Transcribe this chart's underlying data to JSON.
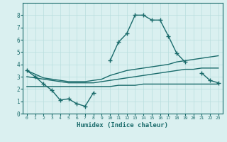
{
  "xlabel": "Humidex (Indice chaleur)",
  "x_values": [
    0,
    1,
    2,
    3,
    4,
    5,
    6,
    7,
    8,
    9,
    10,
    11,
    12,
    13,
    14,
    15,
    16,
    17,
    18,
    19,
    20,
    21,
    22,
    23
  ],
  "line1_y": [
    3.5,
    3.0,
    2.4,
    1.9,
    1.1,
    1.2,
    0.8,
    0.6,
    1.7,
    null,
    4.3,
    5.8,
    6.5,
    8.0,
    8.0,
    7.6,
    7.6,
    6.3,
    4.9,
    4.2,
    null,
    3.3,
    2.7,
    2.5
  ],
  "line2_y": [
    3.5,
    3.2,
    2.9,
    2.8,
    2.7,
    2.6,
    2.6,
    2.6,
    2.7,
    2.8,
    3.1,
    3.3,
    3.5,
    3.6,
    3.7,
    3.8,
    3.9,
    4.0,
    4.2,
    4.3,
    4.4,
    4.5,
    4.6,
    4.7
  ],
  "line3_y": [
    3.0,
    2.9,
    2.8,
    2.7,
    2.6,
    2.5,
    2.5,
    2.5,
    2.5,
    2.6,
    2.7,
    2.8,
    2.9,
    3.0,
    3.1,
    3.2,
    3.3,
    3.4,
    3.5,
    3.6,
    3.6,
    3.7,
    3.7,
    3.7
  ],
  "line4_y": [
    2.2,
    2.2,
    2.2,
    2.2,
    2.2,
    2.2,
    2.2,
    2.2,
    2.2,
    2.2,
    2.2,
    2.3,
    2.3,
    2.3,
    2.4,
    2.4,
    2.4,
    2.4,
    2.4,
    2.4,
    2.4,
    2.4,
    2.4,
    2.4
  ],
  "line_color": "#1a6b6b",
  "bg_color": "#daf0f0",
  "grid_color": "#b8dede",
  "ylim": [
    0,
    9
  ],
  "xlim": [
    -0.5,
    23.5
  ],
  "yticks": [
    0,
    1,
    2,
    3,
    4,
    5,
    6,
    7,
    8
  ],
  "xticks": [
    0,
    1,
    2,
    3,
    4,
    5,
    6,
    7,
    8,
    9,
    10,
    11,
    12,
    13,
    14,
    15,
    16,
    17,
    18,
    19,
    20,
    21,
    22,
    23
  ]
}
